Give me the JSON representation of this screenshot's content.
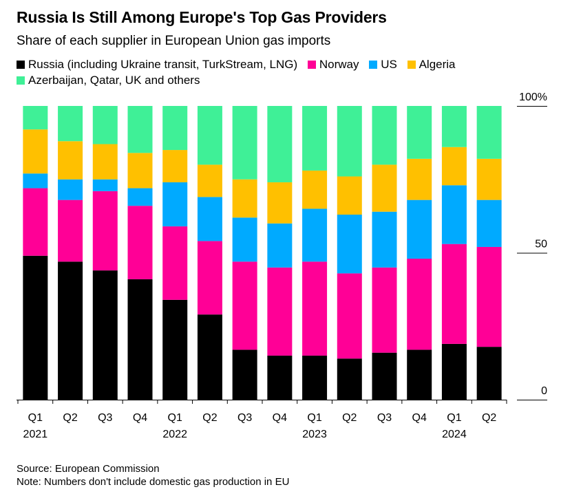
{
  "header": {
    "title": "Russia Is Still Among Europe's Top Gas Providers",
    "subtitle": "Share of each supplier in European Union gas imports"
  },
  "footer": {
    "source": "Source: European Commission",
    "note": "Note: Numbers don't include domestic gas production in EU"
  },
  "chart_data": {
    "type": "bar",
    "stacked": true,
    "categories": [
      "Q1",
      "Q2",
      "Q3",
      "Q4",
      "Q1",
      "Q2",
      "Q3",
      "Q4",
      "Q1",
      "Q2",
      "Q3",
      "Q4",
      "Q1",
      "Q2"
    ],
    "year_labels": [
      {
        "label": "2021",
        "index": 0
      },
      {
        "label": "2022",
        "index": 4
      },
      {
        "label": "2023",
        "index": 8
      },
      {
        "label": "2024",
        "index": 12
      }
    ],
    "ylim": [
      0,
      100
    ],
    "yticks": [
      {
        "value": 0,
        "label": "0"
      },
      {
        "value": 50,
        "label": "50"
      },
      {
        "value": 100,
        "label": "100%"
      }
    ],
    "grid": false,
    "legend_position": "top-left",
    "series": [
      {
        "name": "Russia (including Ukraine transit, TurkStream, LNG)",
        "color": "#000000",
        "values": [
          49,
          47,
          44,
          41,
          34,
          29,
          17,
          15,
          15,
          14,
          16,
          17,
          19,
          18
        ]
      },
      {
        "name": "Norway",
        "color": "#ff0096",
        "values": [
          23,
          21,
          27,
          25,
          25,
          25,
          30,
          30,
          32,
          29,
          29,
          31,
          34,
          34
        ]
      },
      {
        "name": "US",
        "color": "#00aaff",
        "values": [
          5,
          7,
          4,
          6,
          15,
          15,
          15,
          15,
          18,
          20,
          19,
          20,
          20,
          16
        ]
      },
      {
        "name": "Algeria",
        "color": "#ffc000",
        "values": [
          15,
          13,
          12,
          12,
          11,
          11,
          13,
          14,
          13,
          13,
          16,
          14,
          13,
          14
        ]
      },
      {
        "name": "Azerbaijan, Qatar, UK and others",
        "color": "#3ff097",
        "values": [
          8,
          12,
          13,
          16,
          15,
          20,
          25,
          26,
          22,
          24,
          20,
          18,
          14,
          18
        ]
      }
    ]
  }
}
